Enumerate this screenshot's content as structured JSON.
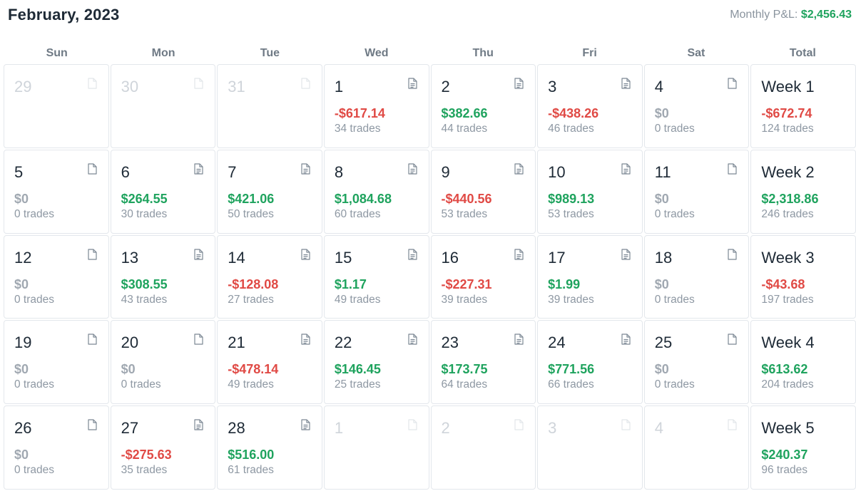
{
  "header": {
    "title": "February, 2023",
    "monthly_label": "Monthly P&L:",
    "monthly_value": "$2,456.43"
  },
  "weekdays": [
    "Sun",
    "Mon",
    "Tue",
    "Wed",
    "Thu",
    "Fri",
    "Sat",
    "Total"
  ],
  "colors": {
    "positive": "#1fa35e",
    "negative": "#e04a45",
    "neutral": "#a0a8b1"
  },
  "weeks": [
    {
      "days": [
        {
          "day": "29",
          "muted": true,
          "note_icon": "file-blank-icon"
        },
        {
          "day": "30",
          "muted": true,
          "note_icon": "file-blank-icon"
        },
        {
          "day": "31",
          "muted": true,
          "note_icon": "file-blank-icon"
        },
        {
          "day": "1",
          "pnl": "-$617.14",
          "sign": "neg",
          "trades": "34 trades",
          "note_icon": "file-text-icon"
        },
        {
          "day": "2",
          "pnl": "$382.66",
          "sign": "pos",
          "trades": "44 trades",
          "note_icon": "file-text-icon"
        },
        {
          "day": "3",
          "pnl": "-$438.26",
          "sign": "neg",
          "trades": "46 trades",
          "note_icon": "file-text-icon"
        },
        {
          "day": "4",
          "pnl": "$0",
          "sign": "zero",
          "trades": "0 trades",
          "note_icon": "file-blank-icon"
        }
      ],
      "total": {
        "label": "Week 1",
        "pnl": "-$672.74",
        "sign": "neg",
        "trades": "124 trades"
      }
    },
    {
      "days": [
        {
          "day": "5",
          "pnl": "$0",
          "sign": "zero",
          "trades": "0 trades",
          "note_icon": "file-blank-icon"
        },
        {
          "day": "6",
          "pnl": "$264.55",
          "sign": "pos",
          "trades": "30 trades",
          "note_icon": "file-text-icon"
        },
        {
          "day": "7",
          "pnl": "$421.06",
          "sign": "pos",
          "trades": "50 trades",
          "note_icon": "file-text-icon"
        },
        {
          "day": "8",
          "pnl": "$1,084.68",
          "sign": "pos",
          "trades": "60 trades",
          "note_icon": "file-text-icon"
        },
        {
          "day": "9",
          "pnl": "-$440.56",
          "sign": "neg",
          "trades": "53 trades",
          "note_icon": "file-text-icon"
        },
        {
          "day": "10",
          "pnl": "$989.13",
          "sign": "pos",
          "trades": "53 trades",
          "note_icon": "file-text-icon"
        },
        {
          "day": "11",
          "pnl": "$0",
          "sign": "zero",
          "trades": "0 trades",
          "note_icon": "file-blank-icon"
        }
      ],
      "total": {
        "label": "Week 2",
        "pnl": "$2,318.86",
        "sign": "pos",
        "trades": "246 trades"
      }
    },
    {
      "days": [
        {
          "day": "12",
          "pnl": "$0",
          "sign": "zero",
          "trades": "0 trades",
          "note_icon": "file-blank-icon"
        },
        {
          "day": "13",
          "pnl": "$308.55",
          "sign": "pos",
          "trades": "43 trades",
          "note_icon": "file-text-icon"
        },
        {
          "day": "14",
          "pnl": "-$128.08",
          "sign": "neg",
          "trades": "27 trades",
          "note_icon": "file-text-icon"
        },
        {
          "day": "15",
          "pnl": "$1.17",
          "sign": "pos",
          "trades": "49 trades",
          "note_icon": "file-text-icon"
        },
        {
          "day": "16",
          "pnl": "-$227.31",
          "sign": "neg",
          "trades": "39 trades",
          "note_icon": "file-text-icon"
        },
        {
          "day": "17",
          "pnl": "$1.99",
          "sign": "pos",
          "trades": "39 trades",
          "note_icon": "file-text-icon"
        },
        {
          "day": "18",
          "pnl": "$0",
          "sign": "zero",
          "trades": "0 trades",
          "note_icon": "file-blank-icon"
        }
      ],
      "total": {
        "label": "Week 3",
        "pnl": "-$43.68",
        "sign": "neg",
        "trades": "197 trades"
      }
    },
    {
      "days": [
        {
          "day": "19",
          "pnl": "$0",
          "sign": "zero",
          "trades": "0 trades",
          "note_icon": "file-blank-icon"
        },
        {
          "day": "20",
          "pnl": "$0",
          "sign": "zero",
          "trades": "0 trades",
          "note_icon": "file-blank-icon"
        },
        {
          "day": "21",
          "pnl": "-$478.14",
          "sign": "neg",
          "trades": "49 trades",
          "note_icon": "file-text-icon"
        },
        {
          "day": "22",
          "pnl": "$146.45",
          "sign": "pos",
          "trades": "25 trades",
          "note_icon": "file-text-icon"
        },
        {
          "day": "23",
          "pnl": "$173.75",
          "sign": "pos",
          "trades": "64 trades",
          "note_icon": "file-text-icon"
        },
        {
          "day": "24",
          "pnl": "$771.56",
          "sign": "pos",
          "trades": "66 trades",
          "note_icon": "file-text-icon"
        },
        {
          "day": "25",
          "pnl": "$0",
          "sign": "zero",
          "trades": "0 trades",
          "note_icon": "file-blank-icon"
        }
      ],
      "total": {
        "label": "Week 4",
        "pnl": "$613.62",
        "sign": "pos",
        "trades": "204 trades"
      }
    },
    {
      "days": [
        {
          "day": "26",
          "pnl": "$0",
          "sign": "zero",
          "trades": "0 trades",
          "note_icon": "file-blank-icon"
        },
        {
          "day": "27",
          "pnl": "-$275.63",
          "sign": "neg",
          "trades": "35 trades",
          "note_icon": "file-text-icon"
        },
        {
          "day": "28",
          "pnl": "$516.00",
          "sign": "pos",
          "trades": "61 trades",
          "note_icon": "file-text-icon"
        },
        {
          "day": "1",
          "muted": true,
          "note_icon": "file-blank-icon"
        },
        {
          "day": "2",
          "muted": true,
          "note_icon": "file-blank-icon"
        },
        {
          "day": "3",
          "muted": true,
          "note_icon": "file-blank-icon"
        },
        {
          "day": "4",
          "muted": true,
          "note_icon": "file-blank-icon"
        }
      ],
      "total": {
        "label": "Week 5",
        "pnl": "$240.37",
        "sign": "pos",
        "trades": "96 trades"
      }
    }
  ]
}
